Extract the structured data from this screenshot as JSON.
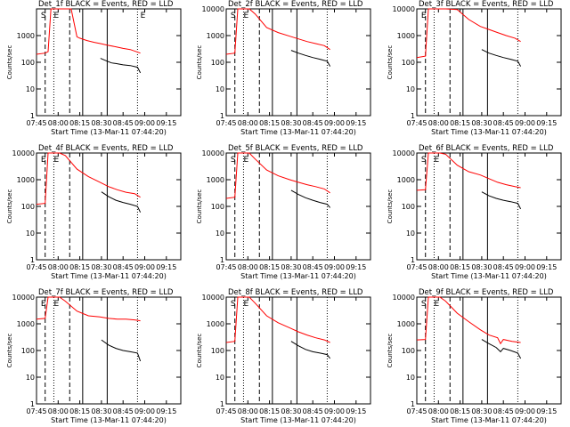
{
  "chart_data": [
    {
      "type": "line",
      "title": "Det_1f BLACK = Events, RED = LLD",
      "xlabel": "Start Time (13-Mar-11 07:44:20)",
      "ylabel": "Counts/sec",
      "yscale": "log",
      "ylim": [
        1,
        10000
      ],
      "x_ticks": [
        "07:45",
        "08:00",
        "08:15",
        "08:30",
        "08:45",
        "09:00",
        "09:15"
      ],
      "y_ticks": [
        "1",
        "10",
        "100",
        "1000"
      ],
      "series": [
        {
          "name": "Events",
          "color": "#000000",
          "x": [
            44.3,
            49,
            52,
            55,
            60,
            65,
            70,
            72
          ],
          "y": [
            140,
            110,
            95,
            90,
            80,
            75,
            65,
            40
          ]
        },
        {
          "name": "LLD",
          "color": "#ff0000",
          "x": [
            0,
            6,
            8,
            10,
            12,
            14,
            20,
            24,
            28,
            30,
            35,
            40,
            44.3,
            49,
            55,
            60,
            65,
            72
          ],
          "y": [
            200,
            220,
            250,
            10000,
            10000,
            10000,
            10000,
            10000,
            900,
            800,
            650,
            560,
            500,
            440,
            380,
            330,
            300,
            220
          ]
        }
      ],
      "annotations": [
        "S",
        "E",
        "E"
      ],
      "vlines": {
        "dashed": [
          6,
          23
        ],
        "dotted": [
          12,
          70
        ],
        "solid": [
          32,
          49
        ]
      }
    },
    {
      "type": "line",
      "title": "Det_2f BLACK = Events, RED = LLD",
      "xlabel": "Start Time (13-Mar-11 07:44:20)",
      "ylabel": "Counts/sec",
      "yscale": "log",
      "ylim": [
        1,
        10000
      ],
      "x_ticks": [
        "07:45",
        "08:00",
        "08:15",
        "08:30",
        "08:45",
        "09:00",
        "09:15"
      ],
      "y_ticks": [
        "1",
        "10",
        "100",
        "1000",
        "10000"
      ],
      "series": [
        {
          "name": "Events",
          "color": "#000000",
          "x": [
            45,
            50,
            55,
            60,
            65,
            70,
            72
          ],
          "y": [
            280,
            220,
            180,
            150,
            130,
            110,
            70
          ]
        },
        {
          "name": "LLD",
          "color": "#ff0000",
          "x": [
            0,
            6,
            8,
            12,
            16,
            20,
            28,
            36,
            44,
            50,
            56,
            62,
            68,
            72
          ],
          "y": [
            200,
            220,
            10000,
            10000,
            10000,
            6500,
            2000,
            1300,
            950,
            750,
            600,
            500,
            420,
            300
          ]
        }
      ],
      "annotations": [
        "S",
        "E"
      ],
      "vlines": {
        "dashed": [
          6,
          23
        ],
        "dotted": [
          12,
          70
        ],
        "solid": [
          32,
          49
        ]
      }
    },
    {
      "type": "line",
      "title": "Det_3f BLACK = Events, RED = LLD",
      "xlabel": "Start Time (13-Mar-11 07:44:20)",
      "ylabel": "Counts/sec",
      "yscale": "log",
      "ylim": [
        1,
        10000
      ],
      "x_ticks": [
        "07:45",
        "08:00",
        "08:15",
        "08:30",
        "08:45",
        "09:00",
        "09:15"
      ],
      "y_ticks": [
        "1",
        "10",
        "100",
        "1000",
        "10000"
      ],
      "series": [
        {
          "name": "Events",
          "color": "#000000",
          "x": [
            45,
            50,
            55,
            60,
            65,
            70,
            72
          ],
          "y": [
            300,
            220,
            180,
            150,
            130,
            110,
            70
          ]
        },
        {
          "name": "LLD",
          "color": "#ff0000",
          "x": [
            0,
            6,
            8,
            14,
            20,
            28,
            36,
            44,
            50,
            56,
            62,
            68,
            72
          ],
          "y": [
            150,
            170,
            10000,
            10000,
            10000,
            9500,
            4000,
            2200,
            1700,
            1300,
            1000,
            800,
            600
          ]
        }
      ],
      "annotations": [
        "E"
      ],
      "vlines": {
        "dashed": [
          6,
          23
        ],
        "dotted": [
          12,
          70
        ],
        "solid": [
          32,
          49
        ]
      }
    },
    {
      "type": "line",
      "title": "Det_4f BLACK = Events, RED = LLD",
      "xlabel": "Start Time (13-Mar-11 07:44:20)",
      "ylabel": "Counts/sec",
      "yscale": "log",
      "ylim": [
        1,
        10000
      ],
      "x_ticks": [
        "07:45",
        "08:00",
        "08:15",
        "08:30",
        "08:45",
        "09:00",
        "09:15"
      ],
      "y_ticks": [
        "1",
        "10",
        "100",
        "1000",
        "10000"
      ],
      "series": [
        {
          "name": "Events",
          "color": "#000000",
          "x": [
            45,
            50,
            55,
            60,
            65,
            70,
            72
          ],
          "y": [
            350,
            230,
            170,
            140,
            120,
            100,
            60
          ]
        },
        {
          "name": "LLD",
          "color": "#ff0000",
          "x": [
            0,
            6,
            8,
            12,
            16,
            20,
            28,
            36,
            44,
            50,
            56,
            62,
            68,
            72
          ],
          "y": [
            120,
            130,
            10000,
            10000,
            10000,
            8000,
            2500,
            1300,
            800,
            550,
            420,
            340,
            300,
            220
          ]
        }
      ],
      "annotations": [
        "E",
        "E"
      ],
      "vlines": {
        "dashed": [
          6,
          23
        ],
        "dotted": [
          12,
          70
        ],
        "solid": [
          32,
          49
        ]
      }
    },
    {
      "type": "line",
      "title": "Det_5f BLACK = Events, RED = LLD",
      "xlabel": "Start Time (13-Mar-11 07:44:20)",
      "ylabel": "Counts/sec",
      "yscale": "log",
      "ylim": [
        1,
        10000
      ],
      "x_ticks": [
        "07:45",
        "08:00",
        "08:15",
        "08:30",
        "08:45",
        "09:00",
        "09:15"
      ],
      "y_ticks": [
        "1",
        "10",
        "100",
        "1000",
        "10000"
      ],
      "series": [
        {
          "name": "Events",
          "color": "#000000",
          "x": [
            45,
            50,
            55,
            60,
            65,
            70,
            72
          ],
          "y": [
            400,
            280,
            210,
            170,
            140,
            120,
            90
          ]
        },
        {
          "name": "LLD",
          "color": "#ff0000",
          "x": [
            0,
            6,
            8,
            12,
            16,
            20,
            28,
            36,
            44,
            50,
            56,
            62,
            68,
            72
          ],
          "y": [
            200,
            220,
            10000,
            10000,
            10000,
            6000,
            2300,
            1400,
            1000,
            800,
            650,
            550,
            450,
            320
          ]
        }
      ],
      "annotations": [
        "S",
        "E"
      ],
      "vlines": {
        "dashed": [
          6,
          23
        ],
        "dotted": [
          12,
          70
        ],
        "solid": [
          32,
          49
        ]
      }
    },
    {
      "type": "line",
      "title": "Det_6f BLACK = Events, RED = LLD",
      "xlabel": "Start Time (13-Mar-11 07:44:20)",
      "ylabel": "Counts/sec",
      "yscale": "log",
      "ylim": [
        1,
        10000
      ],
      "x_ticks": [
        "07:45",
        "08:00",
        "08:15",
        "08:30",
        "08:45",
        "09:00",
        "09:15"
      ],
      "y_ticks": [
        "1",
        "10",
        "100",
        "1000",
        "10000"
      ],
      "series": [
        {
          "name": "Events",
          "color": "#000000",
          "x": [
            45,
            50,
            55,
            60,
            65,
            70,
            72
          ],
          "y": [
            350,
            250,
            200,
            170,
            150,
            130,
            80
          ]
        },
        {
          "name": "LLD",
          "color": "#ff0000",
          "x": [
            0,
            6,
            8,
            12,
            16,
            20,
            28,
            36,
            44,
            50,
            56,
            62,
            68,
            72
          ],
          "y": [
            400,
            420,
            10000,
            10000,
            10000,
            9000,
            3500,
            2000,
            1500,
            1100,
            800,
            650,
            550,
            500
          ]
        }
      ],
      "annotations": [
        "S",
        "E"
      ],
      "vlines": {
        "dashed": [
          6,
          23
        ],
        "dotted": [
          12,
          70
        ],
        "solid": [
          32,
          49
        ]
      }
    },
    {
      "type": "line",
      "title": "Det_7f BLACK = Events, RED = LLD",
      "xlabel": "Start Time (13-Mar-11 07:44:20)",
      "ylabel": "Counts/sec",
      "yscale": "log",
      "ylim": [
        1,
        10000
      ],
      "x_ticks": [
        "07:45",
        "08:00",
        "08:15",
        "08:30",
        "08:45",
        "09:00",
        "09:15"
      ],
      "y_ticks": [
        "1",
        "10",
        "100",
        "1000",
        "10000"
      ],
      "series": [
        {
          "name": "Events",
          "color": "#000000",
          "x": [
            45,
            50,
            55,
            60,
            65,
            70,
            72
          ],
          "y": [
            250,
            160,
            120,
            100,
            90,
            80,
            40
          ]
        },
        {
          "name": "LLD",
          "color": "#ff0000",
          "x": [
            0,
            6,
            8,
            12,
            16,
            20,
            28,
            36,
            44,
            50,
            56,
            62,
            68,
            72
          ],
          "y": [
            1500,
            1600,
            10000,
            10000,
            10000,
            7000,
            3000,
            2000,
            1800,
            1600,
            1500,
            1500,
            1400,
            1300
          ]
        }
      ],
      "annotations": [
        "E",
        "E"
      ],
      "vlines": {
        "dashed": [
          6,
          23
        ],
        "dotted": [
          12,
          70
        ],
        "solid": [
          32,
          49
        ]
      }
    },
    {
      "type": "line",
      "title": "Det_8f BLACK = Events, RED = LLD",
      "xlabel": "Start Time (13-Mar-11 07:44:20)",
      "ylabel": "Counts/sec",
      "yscale": "log",
      "ylim": [
        1,
        10000
      ],
      "x_ticks": [
        "07:45",
        "08:00",
        "08:15",
        "08:30",
        "08:45",
        "09:00",
        "09:15"
      ],
      "y_ticks": [
        "1",
        "10",
        "100",
        "1000",
        "10000"
      ],
      "series": [
        {
          "name": "Events",
          "color": "#000000",
          "x": [
            45,
            50,
            55,
            60,
            65,
            70,
            72
          ],
          "y": [
            220,
            150,
            110,
            90,
            80,
            70,
            50
          ]
        },
        {
          "name": "LLD",
          "color": "#ff0000",
          "x": [
            0,
            6,
            8,
            12,
            16,
            20,
            28,
            36,
            44,
            50,
            56,
            62,
            68,
            72
          ],
          "y": [
            200,
            220,
            10000,
            10000,
            10000,
            6000,
            2000,
            1100,
            700,
            500,
            380,
            300,
            250,
            200
          ]
        }
      ],
      "annotations": [
        "S",
        "E"
      ],
      "vlines": {
        "dashed": [
          6,
          23
        ],
        "dotted": [
          12,
          70
        ],
        "solid": [
          32,
          49
        ]
      }
    },
    {
      "type": "line",
      "title": "Det_9f BLACK = Events, RED = LLD",
      "xlabel": "Start Time (13-Mar-11 07:44:20)",
      "ylabel": "Counts/sec",
      "yscale": "log",
      "ylim": [
        1,
        10000
      ],
      "x_ticks": [
        "07:45",
        "08:00",
        "08:15",
        "08:30",
        "08:45",
        "09:00",
        "09:15"
      ],
      "y_ticks": [
        "1",
        "10",
        "100",
        "1000",
        "10000"
      ],
      "series": [
        {
          "name": "Events",
          "color": "#000000",
          "x": [
            45,
            50,
            55,
            58,
            60,
            65,
            70,
            72
          ],
          "y": [
            260,
            180,
            130,
            90,
            120,
            100,
            80,
            50
          ]
        },
        {
          "name": "LLD",
          "color": "#ff0000",
          "x": [
            0,
            6,
            8,
            12,
            16,
            20,
            28,
            36,
            44,
            50,
            56,
            58,
            60,
            66,
            72
          ],
          "y": [
            250,
            260,
            10000,
            10000,
            10000,
            7000,
            2500,
            1200,
            600,
            380,
            300,
            180,
            260,
            220,
            200
          ]
        }
      ],
      "annotations": [
        "S",
        "E"
      ],
      "vlines": {
        "dashed": [
          6,
          23
        ],
        "dotted": [
          12,
          70
        ],
        "solid": [
          32,
          49
        ]
      }
    }
  ]
}
